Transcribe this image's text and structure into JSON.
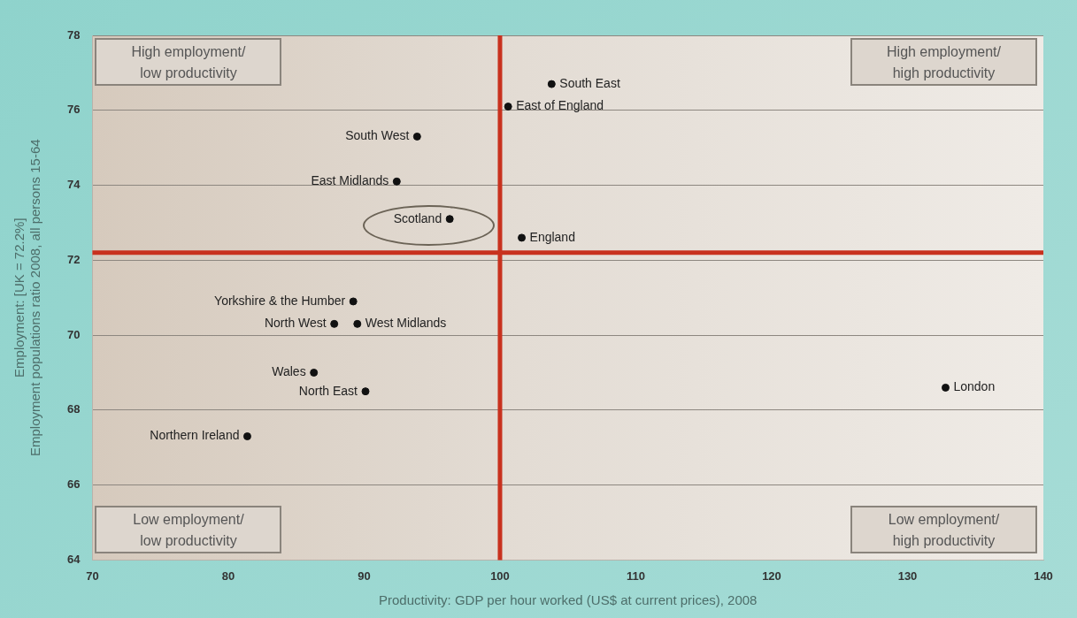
{
  "chart_data": {
    "type": "scatter",
    "xlabel": "Productivity: GDP per hour worked (US$ at current prices), 2008",
    "ylabel": "Employment: [UK = 72.2%]\nEmployment populations ratio 2008, all persons 15-64",
    "x": [
      103.8,
      100.6,
      93.9,
      92.4,
      96.3,
      101.6,
      89.2,
      87.8,
      89.5,
      86.3,
      90.1,
      81.4,
      132.8
    ],
    "series": [
      {
        "color": "#111111",
        "values": [
          76.7,
          76.1,
          75.3,
          74.1,
          73.1,
          72.6,
          70.9,
          70.3,
          70.3,
          69.0,
          68.5,
          67.3,
          68.6
        ]
      }
    ],
    "marker": "circle",
    "xlim": [
      70,
      140
    ],
    "xticks": [
      70,
      80,
      90,
      100,
      110,
      120,
      130,
      140
    ],
    "ylim": [
      64,
      78
    ],
    "yticks": [
      64,
      66,
      68,
      70,
      72,
      74,
      76,
      78
    ],
    "grid": "y",
    "legend": false,
    "ref_lines": [
      {
        "axis": "x",
        "value": 100,
        "color": "#c8311e"
      },
      {
        "axis": "y",
        "value": 72.2,
        "color": "#c8311e"
      }
    ],
    "annotations": [
      "High employment/\nlow productivity",
      "High employment/\nhigh productivity",
      "Low employment/\nlow productivity",
      "Low employment/\nhigh productivity",
      {
        "text": "South East",
        "x": 103.8,
        "y": 76.7
      },
      {
        "text": "East of England",
        "x": 100.6,
        "y": 76.1
      },
      {
        "text": "South West",
        "x": 93.9,
        "y": 75.3
      },
      {
        "text": "East Midlands",
        "x": 92.4,
        "y": 74.1
      },
      {
        "text": "Scotland",
        "x": 96.3,
        "y": 73.1
      },
      {
        "text": "England",
        "x": 101.6,
        "y": 72.6
      },
      {
        "text": "Yorkshire & the Humber",
        "x": 89.2,
        "y": 70.9
      },
      {
        "text": "North West",
        "x": 87.8,
        "y": 70.3
      },
      {
        "text": "West Midlands",
        "x": 89.5,
        "y": 70.3
      },
      {
        "text": "Wales",
        "x": 86.3,
        "y": 69.0
      },
      {
        "text": "North East",
        "x": 90.1,
        "y": 68.5
      },
      {
        "text": "Northern Ireland",
        "x": 81.4,
        "y": 67.3
      },
      {
        "text": "London",
        "x": 132.8,
        "y": 68.6
      }
    ]
  }
}
